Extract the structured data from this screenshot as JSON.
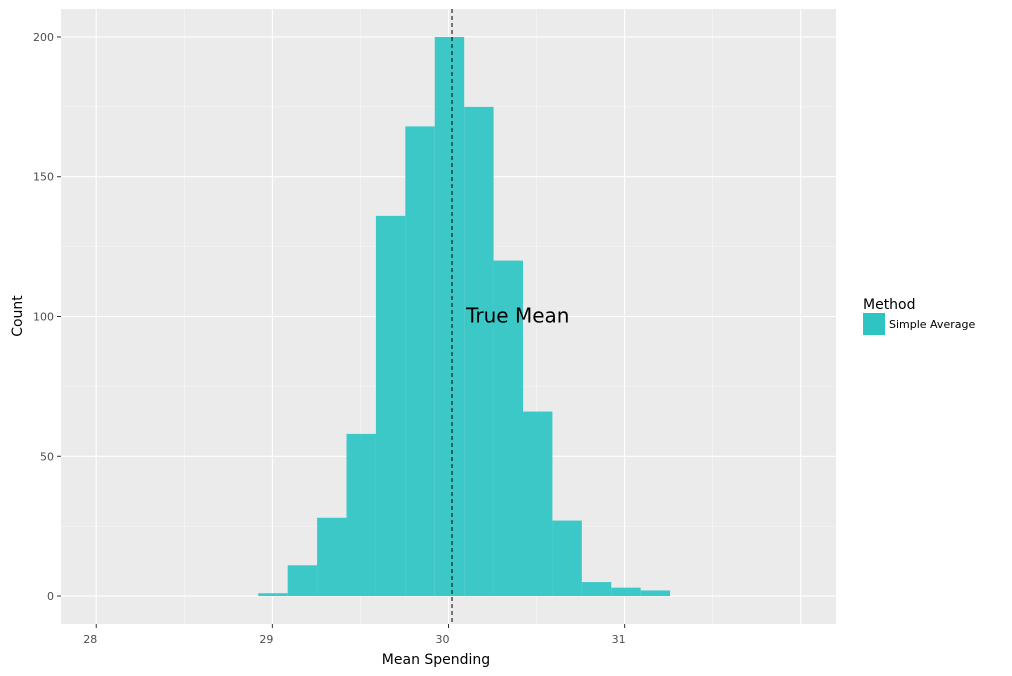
{
  "chart_data": {
    "type": "bar",
    "subtype": "histogram",
    "xlabel": "Mean Spending",
    "ylabel": "Count",
    "xlim": [
      27.8,
      32.2
    ],
    "ylim": [
      -10,
      210
    ],
    "x_ticks": [
      28,
      29,
      30,
      31
    ],
    "y_ticks": [
      0,
      50,
      100,
      150,
      200
    ],
    "grid": true,
    "bin_width": 0.167,
    "bin_starts": [
      28.92,
      29.087,
      29.254,
      29.421,
      29.588,
      29.755,
      29.922,
      30.089,
      30.256,
      30.423,
      30.59,
      30.757,
      30.924,
      31.091
    ],
    "values": [
      1,
      11,
      28,
      58,
      136,
      168,
      200,
      175,
      120,
      66,
      27,
      5,
      3,
      2
    ],
    "series": [
      {
        "name": "Simple Average",
        "color": "#2ec4c4"
      }
    ],
    "reference_line": {
      "x": 30.02,
      "style": "dashed",
      "color": "#000000"
    },
    "annotation": {
      "text": "True Mean",
      "x": 30.1,
      "y": 100
    },
    "legend": {
      "title": "Method",
      "placement": "right"
    }
  }
}
